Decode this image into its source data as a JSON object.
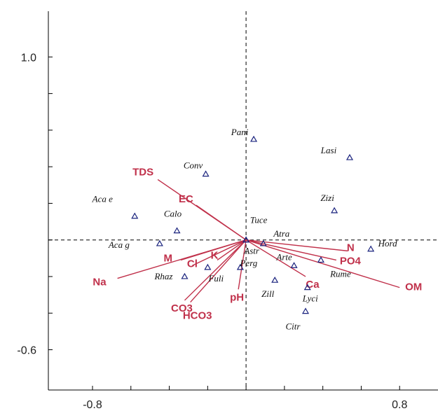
{
  "chart_data": {
    "type": "scatter",
    "title": "",
    "xlabel": "",
    "ylabel": "",
    "xlim": [
      -1.03,
      1.0
    ],
    "ylim": [
      -0.82,
      1.25
    ],
    "x_ticks": [
      -0.8,
      0.8
    ],
    "y_ticks": [
      1.0,
      -0.6
    ],
    "x_tick_marks": [
      -0.8,
      -0.6,
      -0.4,
      -0.2,
      0.0,
      0.2,
      0.4,
      0.6,
      0.8
    ],
    "y_tick_marks": [
      1.0,
      0.8,
      0.6,
      0.4,
      0.2,
      0.0,
      -0.2,
      -0.4,
      -0.6
    ],
    "colors": {
      "arrows": "#c0304a",
      "species": "#1a237e",
      "axes": "#000000"
    },
    "species": [
      {
        "name": "Pani",
        "x": 0.04,
        "y": 0.55
      },
      {
        "name": "Lasi",
        "x": 0.54,
        "y": 0.45
      },
      {
        "name": "Conv",
        "x": -0.21,
        "y": 0.36
      },
      {
        "name": "Aca e",
        "x": -0.58,
        "y": 0.13
      },
      {
        "name": "Calo",
        "x": -0.36,
        "y": 0.05
      },
      {
        "name": "Tuce",
        "x": 0.0,
        "y": 0.0
      },
      {
        "name": "Atra",
        "x": 0.09,
        "y": -0.02
      },
      {
        "name": "Zizi",
        "x": 0.46,
        "y": 0.16
      },
      {
        "name": "Aca g",
        "x": -0.45,
        "y": -0.02
      },
      {
        "name": "Hord",
        "x": 0.65,
        "y": -0.05
      },
      {
        "name": "Astr",
        "x": 0.0,
        "y": 0.0
      },
      {
        "name": "Arte",
        "x": 0.25,
        "y": -0.14
      },
      {
        "name": "Rume",
        "x": 0.39,
        "y": -0.11
      },
      {
        "name": "Perg",
        "x": -0.03,
        "y": -0.15
      },
      {
        "name": "Rhaz",
        "x": -0.32,
        "y": -0.2
      },
      {
        "name": "Fuli",
        "x": -0.2,
        "y": -0.15
      },
      {
        "name": "Zill",
        "x": 0.15,
        "y": -0.22
      },
      {
        "name": "Lyci",
        "x": 0.32,
        "y": -0.26
      },
      {
        "name": "Citr",
        "x": 0.31,
        "y": -0.39
      }
    ],
    "vectors": [
      {
        "name": "TDS",
        "x": -0.46,
        "y": 0.33
      },
      {
        "name": "EC",
        "x": -0.26,
        "y": 0.19
      },
      {
        "name": "N",
        "x": 0.53,
        "y": -0.06
      },
      {
        "name": "PO4",
        "x": 0.47,
        "y": -0.11
      },
      {
        "name": "OM",
        "x": 0.8,
        "y": -0.26
      },
      {
        "name": "Ca",
        "x": 0.31,
        "y": -0.2
      },
      {
        "name": "M",
        "x": -0.34,
        "y": -0.11
      },
      {
        "name": "Cl",
        "x": -0.28,
        "y": -0.14
      },
      {
        "name": "K",
        "x": -0.15,
        "y": -0.11
      },
      {
        "name": "Na",
        "x": -0.67,
        "y": -0.21
      },
      {
        "name": "pH",
        "x": -0.04,
        "y": -0.27
      },
      {
        "name": "CO3",
        "x": -0.32,
        "y": -0.33
      },
      {
        "name": "HCO3",
        "x": -0.29,
        "y": -0.34
      }
    ]
  }
}
